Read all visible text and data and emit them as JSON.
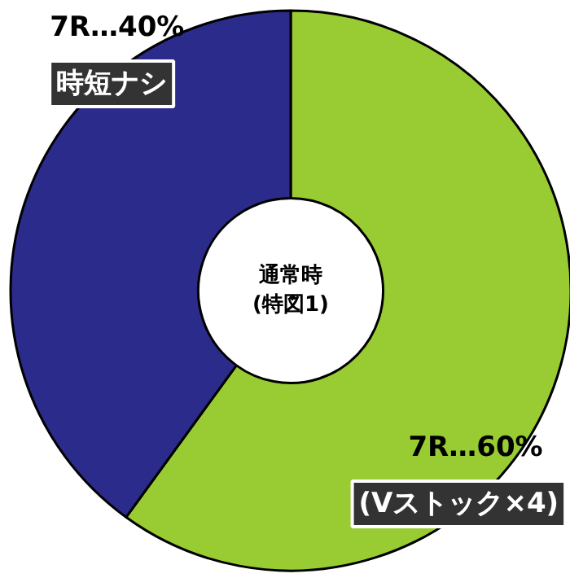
{
  "chart_data": {
    "type": "donut",
    "title": "通常時\n(特図1)",
    "categories": [
      "(Vストック×4)",
      "時短ナシ"
    ],
    "values": [
      60,
      40
    ],
    "colors": [
      "#99cc33",
      "#2b2b8c"
    ],
    "value_labels": [
      "7R…60%",
      "7R…40%"
    ]
  }
}
